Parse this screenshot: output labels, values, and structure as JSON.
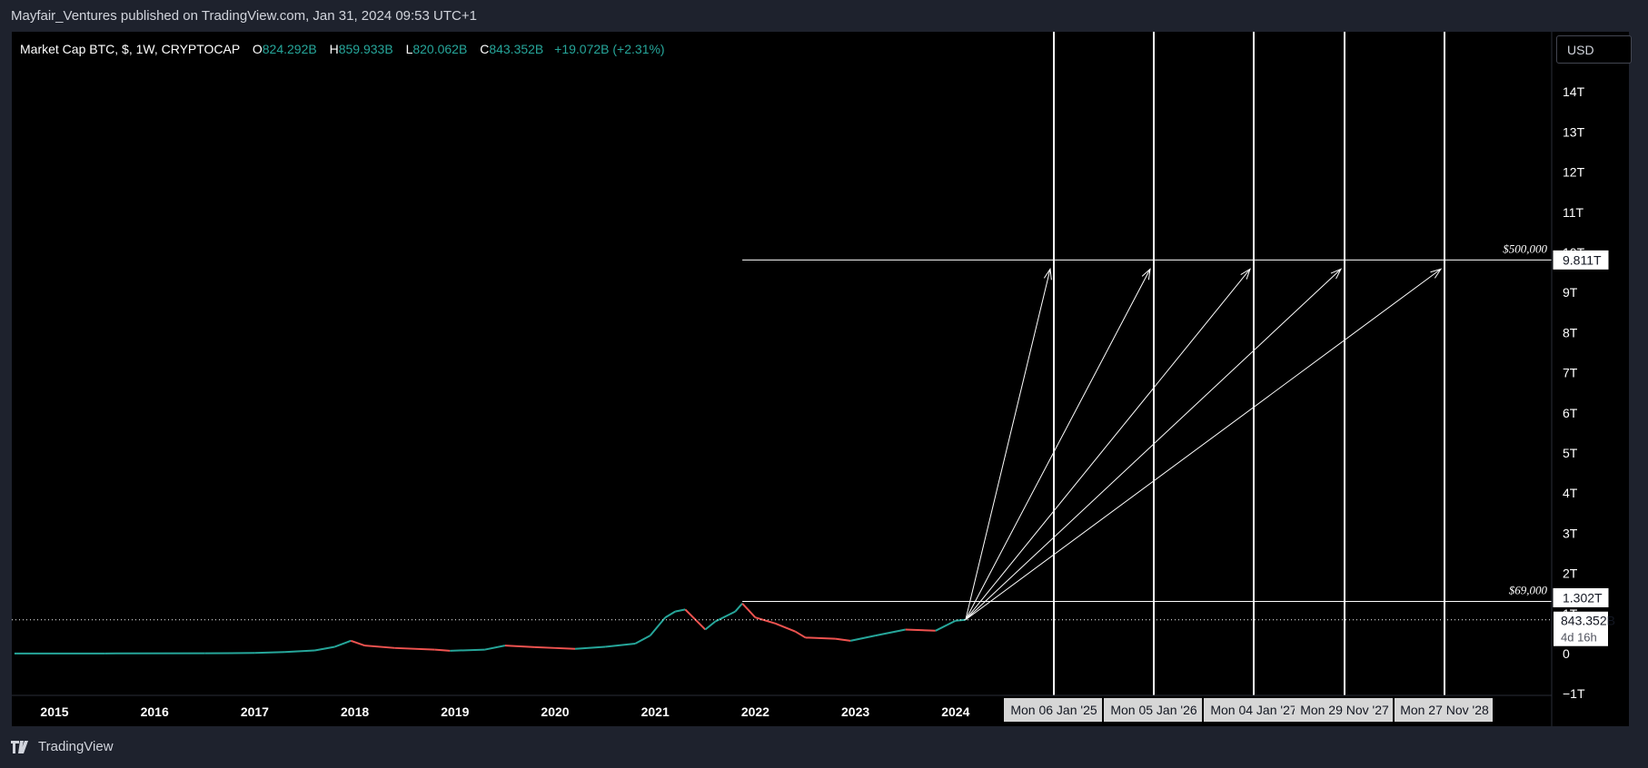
{
  "header": {
    "published": "Mayfair_Ventures published on TradingView.com, Jan 31, 2024 09:53 UTC+1"
  },
  "legend": {
    "symbol": "Market Cap BTC, $, 1W, CRYPTOCAP",
    "o_label": "O",
    "o": "824.292B",
    "h_label": "H",
    "h": "859.933B",
    "l_label": "L",
    "l": "820.062B",
    "c_label": "C",
    "c": "843.352B",
    "change": "+19.072B (+2.31%)"
  },
  "currency": "USD",
  "footer": {
    "brand": "TradingView"
  },
  "colors": {
    "up": "#26a69a",
    "down": "#ef5350",
    "background": "#000000",
    "frame": "#1e222d",
    "line": "#ffffff"
  },
  "chart_data": {
    "type": "line",
    "title": "",
    "xlabel": "",
    "ylabel": "",
    "x_ticks": [
      "2015",
      "2016",
      "2017",
      "2018",
      "2019",
      "2020",
      "2021",
      "2022",
      "2023",
      "2024"
    ],
    "y_ticks": [
      "−1T",
      "0",
      "1T",
      "2T",
      "3T",
      "4T",
      "5T",
      "6T",
      "7T",
      "8T",
      "9T",
      "10T",
      "11T",
      "12T",
      "13T",
      "14T"
    ],
    "ylim": [
      -1,
      15
    ],
    "xlim": [
      2014.6,
      2030.3
    ],
    "series": [
      {
        "x": [
          2014.6,
          2015.5,
          2016.5,
          2017.0,
          2017.3,
          2017.6,
          2017.8,
          2017.96,
          2018.1,
          2018.4,
          2018.8,
          2018.95,
          2019.3,
          2019.5,
          2019.8,
          2020.0,
          2020.2,
          2020.5,
          2020.8,
          2020.95,
          2021.1,
          2021.2,
          2021.3,
          2021.5,
          2021.6,
          2021.8,
          2021.87,
          2022.0,
          2022.2,
          2022.4,
          2022.5,
          2022.8,
          2022.95,
          2023.2,
          2023.5,
          2023.8,
          2024.0,
          2024.1
        ],
        "y": [
          0.004,
          0.004,
          0.008,
          0.016,
          0.04,
          0.08,
          0.17,
          0.32,
          0.2,
          0.14,
          0.1,
          0.07,
          0.1,
          0.2,
          0.16,
          0.14,
          0.12,
          0.17,
          0.25,
          0.45,
          0.9,
          1.05,
          1.1,
          0.6,
          0.8,
          1.05,
          1.25,
          0.9,
          0.75,
          0.55,
          0.4,
          0.37,
          0.32,
          0.45,
          0.6,
          0.57,
          0.82,
          0.843
        ]
      }
    ],
    "markers": {
      "last_price_label": "843.352B",
      "countdown_label": "4d 16h",
      "ath_level": 1.302,
      "ath_level_label": "1.302T",
      "ath_price_note": "$69,000",
      "target_level": 9.811,
      "target_level_label": "9.811T",
      "target_price_note": "$500,000"
    },
    "projection_dates": [
      "Mon 06 Jan '25",
      "Mon 05 Jan '26",
      "Mon 04 Jan '27",
      "Mon 29 Nov '27",
      "Mon 27 Nov '28"
    ],
    "grid": false
  }
}
